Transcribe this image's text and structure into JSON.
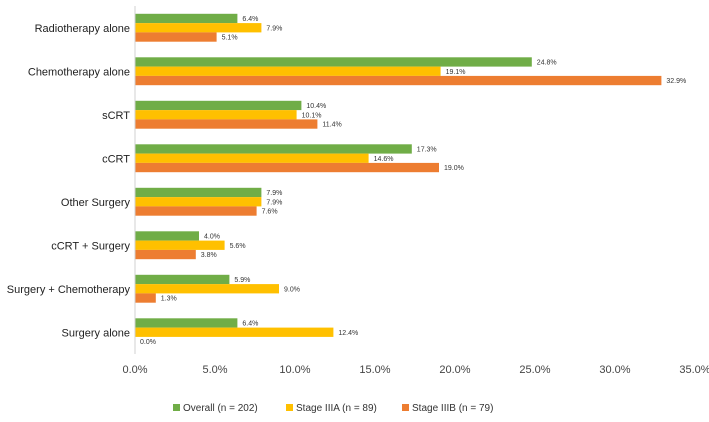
{
  "chart_data": {
    "type": "bar",
    "orientation": "horizontal",
    "title": "",
    "xlabel": "",
    "ylabel": "",
    "xlim": [
      0,
      35
    ],
    "x_ticks": [
      0,
      5,
      10,
      15,
      20,
      25,
      30,
      35
    ],
    "x_tick_labels": [
      "0.0%",
      "5.0%",
      "10.0%",
      "15.0%",
      "20.0%",
      "25.0%",
      "30.0%",
      "35.0%"
    ],
    "grid": false,
    "legend_position": "bottom",
    "categories": [
      "Radiotherapy alone",
      "Chemotherapy alone",
      "sCRT",
      "cCRT",
      "Other Surgery",
      "cCRT + Surgery",
      "Surgery + Chemotherapy",
      "Surgery alone"
    ],
    "series": [
      {
        "name": "Overall (n = 202)",
        "color": "#70AD47",
        "values": [
          6.4,
          24.8,
          10.4,
          17.3,
          7.9,
          4.0,
          5.9,
          6.4
        ],
        "labels": [
          "6.4%",
          "24.8%",
          "10.4%",
          "17.3%",
          "7.9%",
          "4.0%",
          "5.9%",
          "6.4%"
        ]
      },
      {
        "name": "Stage IIIA (n = 89)",
        "color": "#FFC000",
        "values": [
          7.9,
          19.1,
          10.1,
          14.6,
          7.9,
          5.6,
          9.0,
          12.4
        ],
        "labels": [
          "7.9%",
          "19.1%",
          "10.1%",
          "14.6%",
          "7.9%",
          "5.6%",
          "9.0%",
          "12.4%"
        ]
      },
      {
        "name": "Stage IIIB (n = 79)",
        "color": "#ED7D31",
        "values": [
          5.1,
          32.9,
          11.4,
          19.0,
          7.6,
          3.8,
          1.3,
          0.0
        ],
        "labels": [
          "5.1%",
          "32.9%",
          "11.4%",
          "19.0%",
          "7.6%",
          "3.8%",
          "1.3%",
          "0.0%"
        ]
      }
    ]
  }
}
